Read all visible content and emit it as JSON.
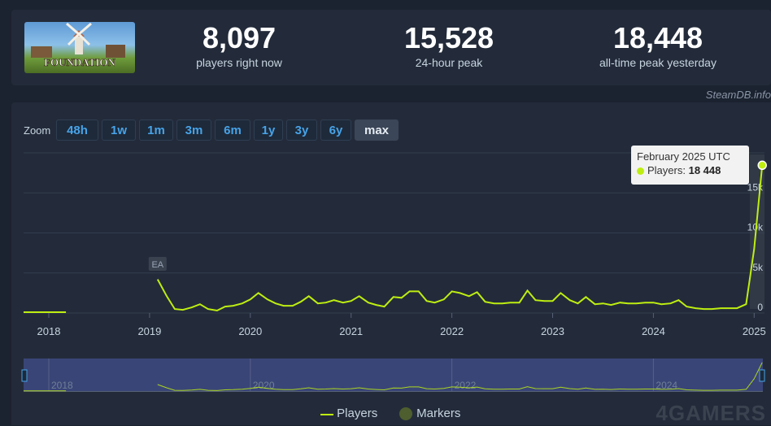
{
  "stats": [
    {
      "value": "8,097",
      "label": "players right now"
    },
    {
      "value": "15,528",
      "label": "24-hour peak"
    },
    {
      "value": "18,448",
      "label": "all-time peak yesterday"
    }
  ],
  "game": {
    "logo_text": "FOUNDATION"
  },
  "credit": "SteamDB.info",
  "zoom": {
    "label": "Zoom",
    "options": [
      "48h",
      "1w",
      "1m",
      "3m",
      "6m",
      "1y",
      "3y",
      "6y",
      "max"
    ],
    "active": "max"
  },
  "tooltip": {
    "title": "February 2025 UTC",
    "series": "Players:",
    "value": "18 448"
  },
  "legend": {
    "players": "Players",
    "markers": "Markers"
  },
  "watermark": "4GAMERS",
  "colors": {
    "line": "#beee11",
    "marker": "#4e5e2e",
    "navigator": "#3a4577"
  },
  "chart_data": {
    "type": "line",
    "x_ticks": [
      "2018",
      "2019",
      "2020",
      "2021",
      "2022",
      "2023",
      "2024",
      "2025"
    ],
    "y_ticks": [
      "0",
      "5k",
      "10k",
      "15k"
    ],
    "ylim": [
      0,
      20000
    ],
    "markers": [
      {
        "label": "EA",
        "x": 2019.08
      }
    ],
    "navigator_ticks": [
      "2018",
      "2020",
      "2022",
      "2024"
    ],
    "series": [
      {
        "name": "Players",
        "x": [
          2017.75,
          2018.17,
          2019.08,
          2019.17,
          2019.25,
          2019.33,
          2019.42,
          2019.5,
          2019.58,
          2019.67,
          2019.75,
          2019.83,
          2019.92,
          2020.0,
          2020.08,
          2020.17,
          2020.25,
          2020.33,
          2020.42,
          2020.5,
          2020.58,
          2020.67,
          2020.75,
          2020.83,
          2020.92,
          2021.0,
          2021.08,
          2021.17,
          2021.25,
          2021.33,
          2021.42,
          2021.5,
          2021.58,
          2021.67,
          2021.75,
          2021.83,
          2021.92,
          2022.0,
          2022.08,
          2022.17,
          2022.25,
          2022.33,
          2022.42,
          2022.5,
          2022.58,
          2022.67,
          2022.75,
          2022.83,
          2022.92,
          2023.0,
          2023.08,
          2023.17,
          2023.25,
          2023.33,
          2023.42,
          2023.5,
          2023.58,
          2023.67,
          2023.75,
          2023.83,
          2023.92,
          2024.0,
          2024.08,
          2024.17,
          2024.25,
          2024.33,
          2024.42,
          2024.5,
          2024.58,
          2024.67,
          2024.75,
          2024.83,
          2024.92,
          2025.0,
          2025.08
        ],
        "values": [
          100,
          100,
          4200,
          2100,
          500,
          400,
          700,
          1100,
          500,
          300,
          800,
          900,
          1200,
          1700,
          2500,
          1700,
          1200,
          900,
          900,
          1400,
          2100,
          1200,
          1300,
          1600,
          1300,
          1500,
          2100,
          1300,
          1000,
          800,
          2000,
          1900,
          2700,
          2700,
          1500,
          1300,
          1700,
          2700,
          2500,
          2100,
          2600,
          1400,
          1200,
          1200,
          1300,
          1300,
          2800,
          1600,
          1500,
          1500,
          2500,
          1600,
          1200,
          2000,
          1100,
          1200,
          1000,
          1300,
          1200,
          1200,
          1300,
          1300,
          1100,
          1200,
          1600,
          800,
          600,
          500,
          500,
          600,
          600,
          600,
          1100,
          8000,
          18448
        ]
      }
    ]
  }
}
